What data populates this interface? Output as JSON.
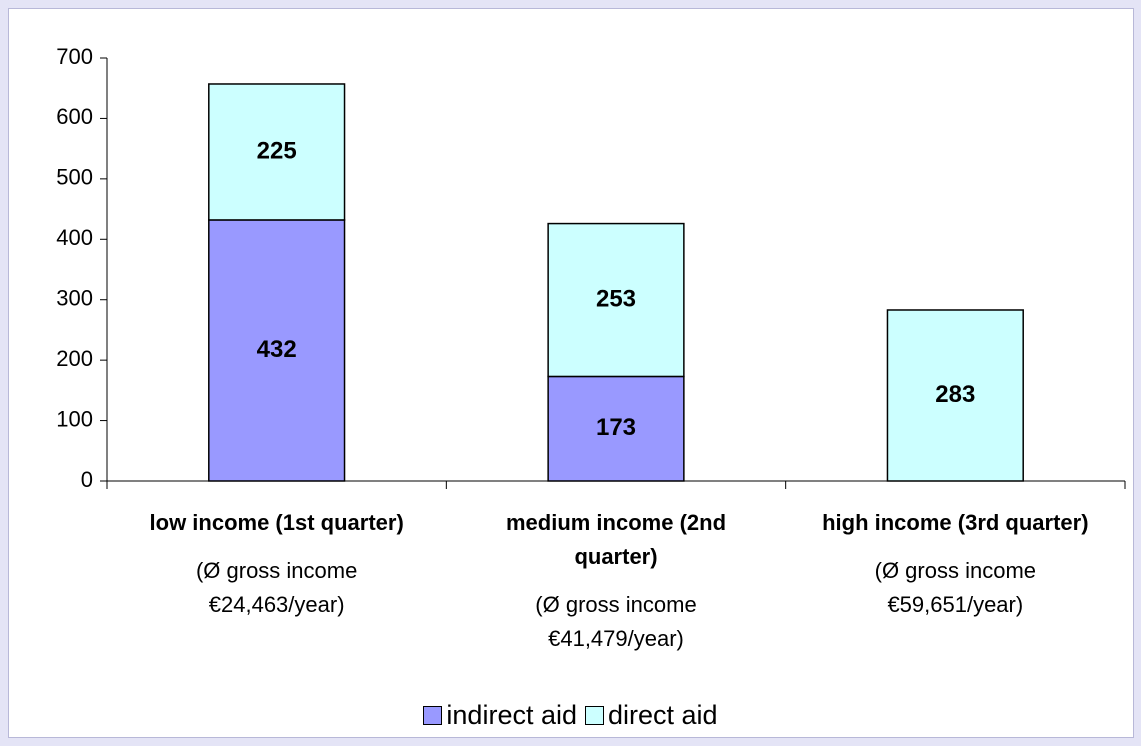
{
  "chart_data": {
    "type": "stacked_bar",
    "categories": [
      "low income (1st quarter)",
      "medium income (2nd quarter)",
      "high income (3rd quarter)"
    ],
    "category_details": [
      "(Ø gross income €24,463/year)",
      "(Ø gross income €41,479/year)",
      "(Ø gross income €59,651/year)"
    ],
    "series": [
      {
        "name": "indirect aid",
        "color": "#9999ff",
        "values": [
          432,
          173,
          null
        ]
      },
      {
        "name": "direct aid",
        "color": "#ccffff",
        "values": [
          225,
          253,
          283
        ]
      }
    ],
    "ylim": [
      0,
      700
    ],
    "yticks": [
      0,
      100,
      200,
      300,
      400,
      500,
      600,
      700
    ],
    "grid": false,
    "legend": "bottom"
  }
}
